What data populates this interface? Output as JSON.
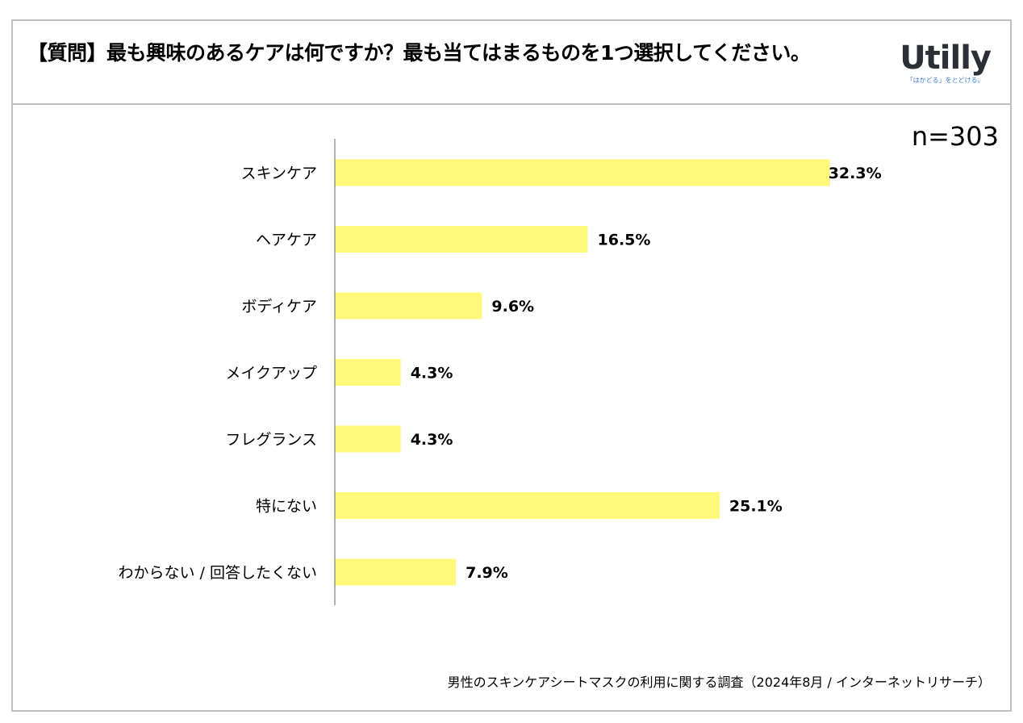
{
  "header": {
    "title": "【質問】最も興味のあるケアは何ですか？最も当てはまるものを1つ選択してください。",
    "logo": {
      "wordmark": "Utilly",
      "tagline": "「はかどる」をとどける。",
      "color": "#3a7bd5"
    }
  },
  "sample": {
    "label": "n=303"
  },
  "source": "男性のスキンケアシートマスクの利用に関する調査（2024年8月 / インターネットリサーチ）",
  "chart_data": {
    "type": "bar",
    "orientation": "horizontal",
    "categories": [
      "スキンケア",
      "ヘアケア",
      "ボディケア",
      "メイクアップ",
      "フレグランス",
      "特にない",
      "わからない / 回答したくない"
    ],
    "values": [
      32.3,
      16.5,
      9.6,
      4.3,
      4.3,
      25.1,
      7.9
    ],
    "value_labels": [
      "32.3%",
      "16.5%",
      "9.6%",
      "4.3%",
      "4.3%",
      "25.1%",
      "7.9%"
    ],
    "xlim": [
      0,
      40
    ],
    "bar_color": "#fff87a",
    "grid": false,
    "legend": "none"
  }
}
